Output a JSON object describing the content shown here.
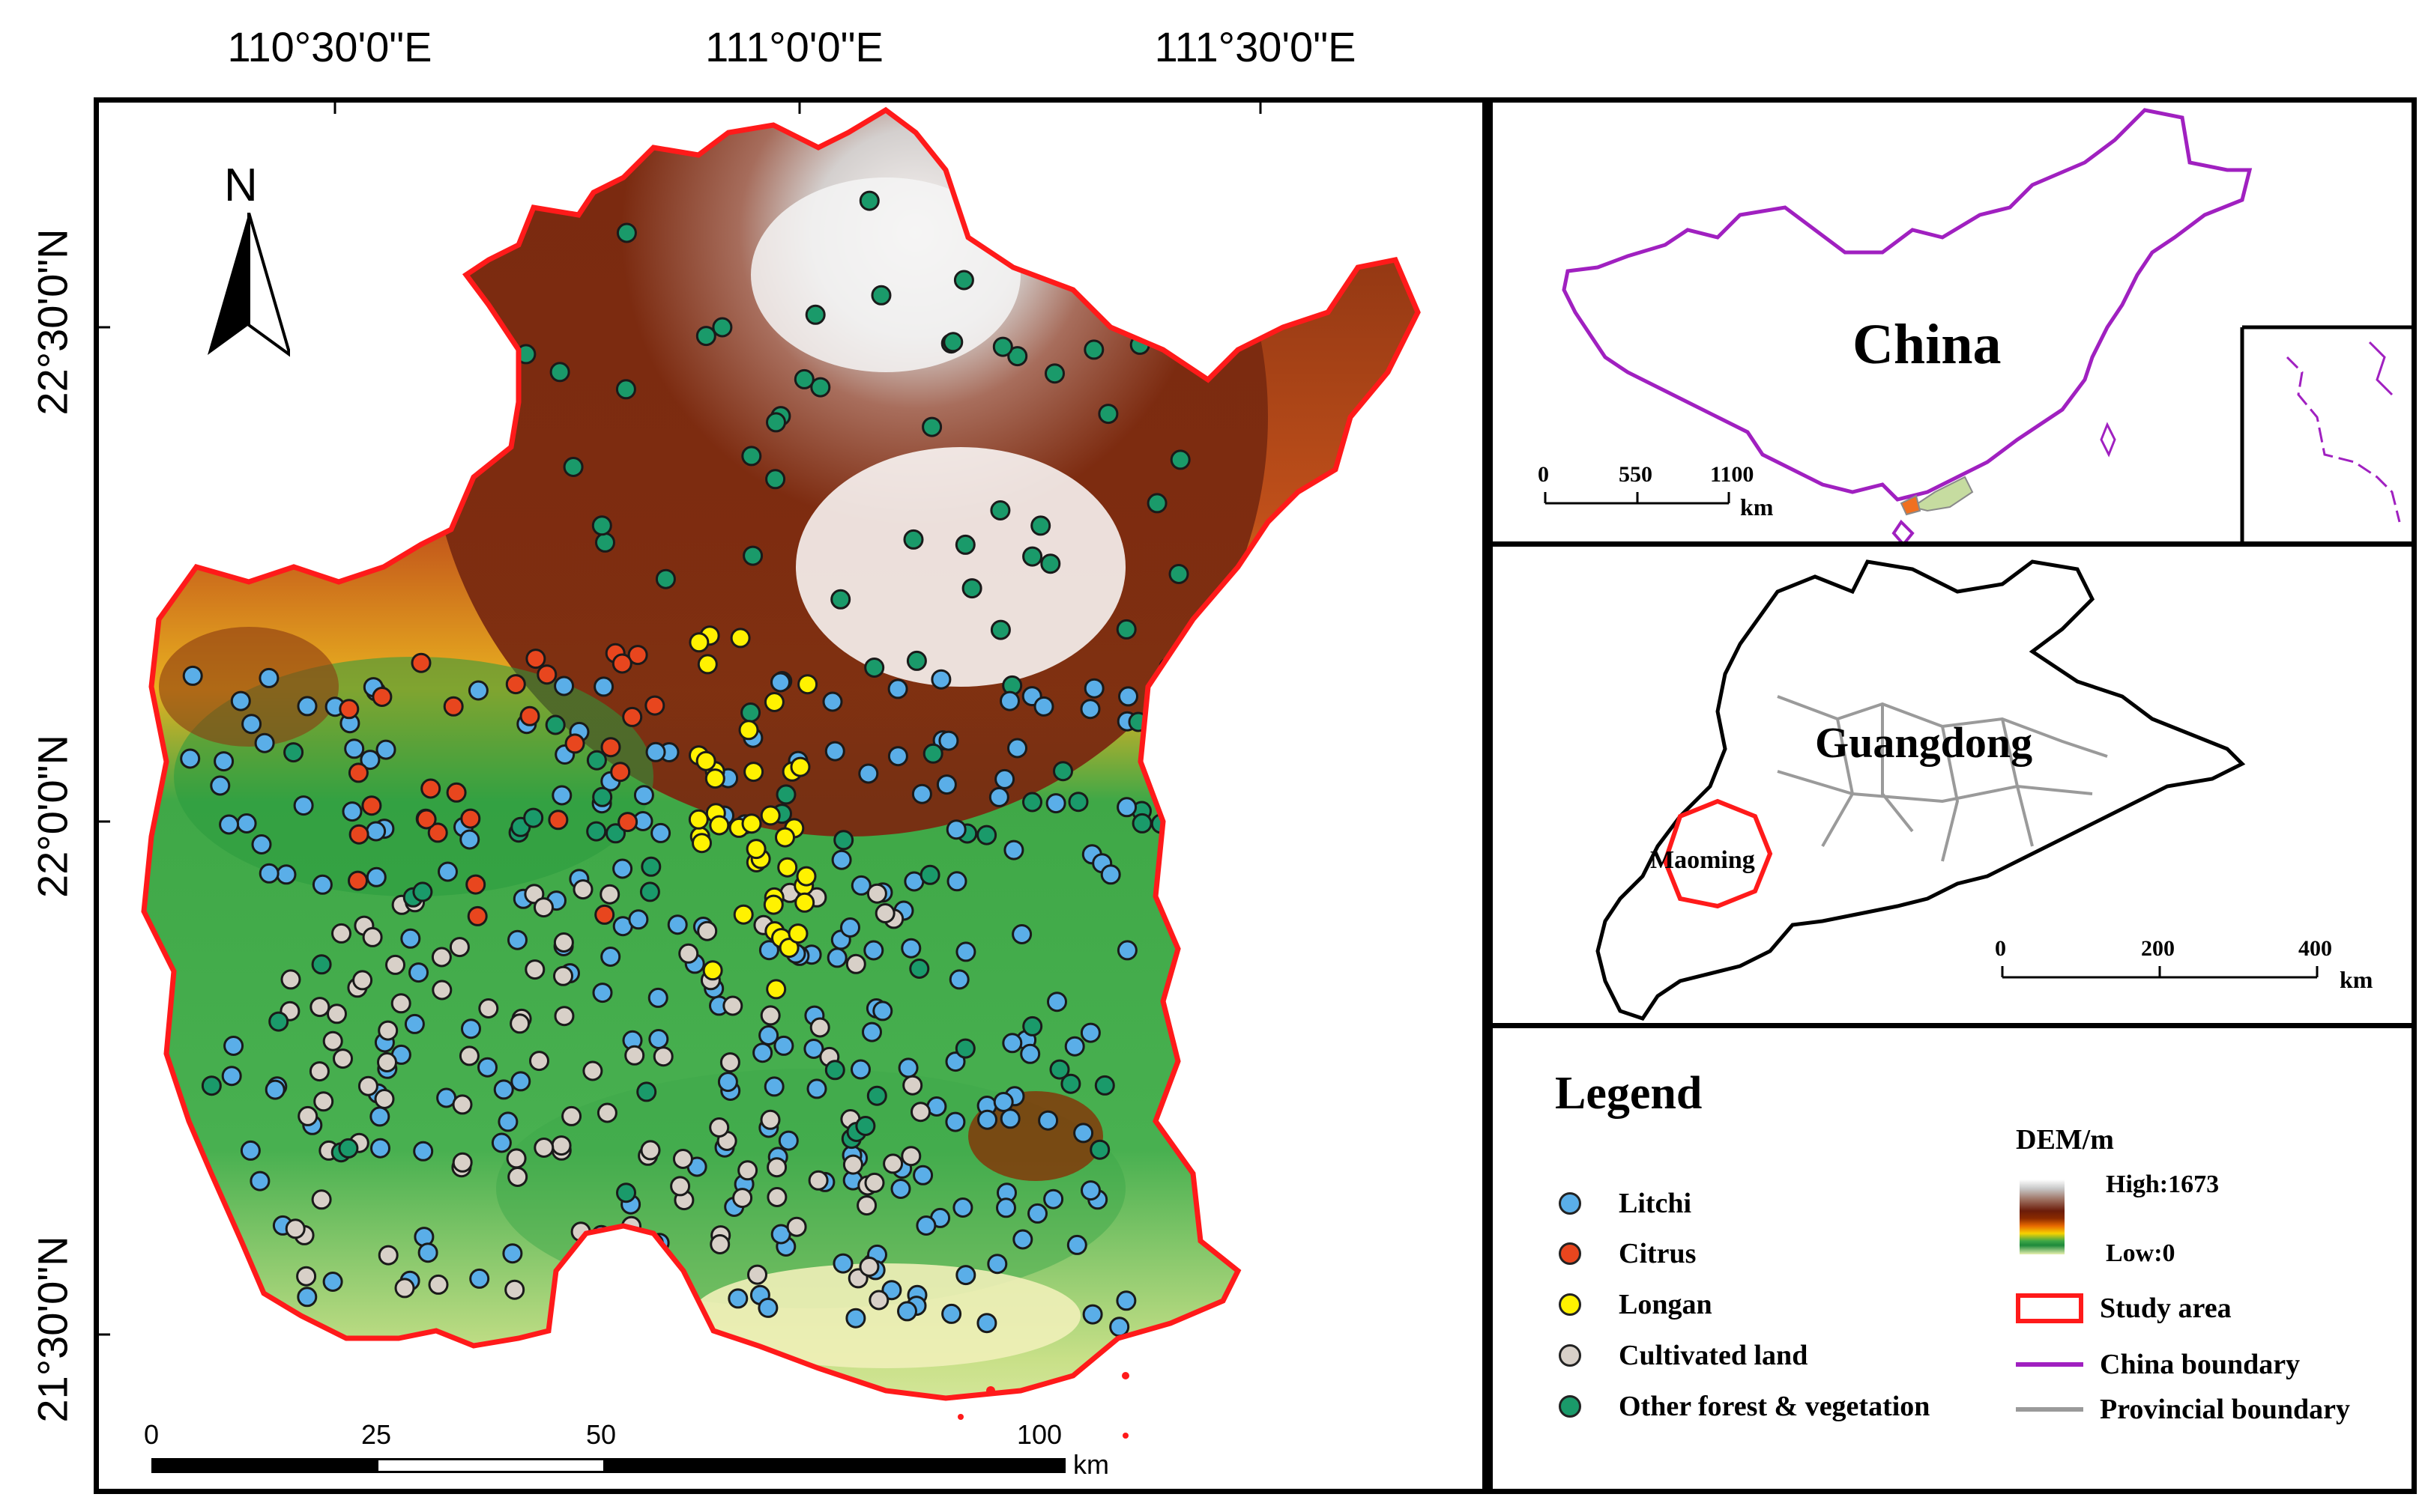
{
  "top_coords": [
    "110°30'0\"E",
    "111°0'0\"E",
    "111°30'0\"E"
  ],
  "left_coords": [
    "22°30'0\"N",
    "22°0'0\"N",
    "21°30'0\"N"
  ],
  "main_scale": {
    "ticks": [
      "0",
      "25",
      "50",
      "100"
    ],
    "unit": "km"
  },
  "north_label": "N",
  "china_panel": {
    "title": "China",
    "scale_ticks": [
      "0",
      "550",
      "1100"
    ],
    "unit": "km"
  },
  "guangdong_panel": {
    "title": "Guangdong",
    "city": "Maoming",
    "scale_ticks": [
      "0",
      "200",
      "400"
    ],
    "unit": "km"
  },
  "legend": {
    "title": "Legend",
    "items": [
      {
        "label": "Litchi",
        "color": "#5aaee8"
      },
      {
        "label": "Citrus",
        "color": "#e8461e"
      },
      {
        "label": "Longan",
        "color": "#fff200"
      },
      {
        "label": "Cultivated land",
        "color": "#d8d0c8"
      },
      {
        "label": "Other forest & vegetation",
        "color": "#1a9a6a"
      }
    ],
    "dem_title": "DEM/m",
    "dem_high": "High:1673",
    "dem_low": "Low:0",
    "study_area": "Study area",
    "china_boundary": "China boundary",
    "provincial_boundary": "Provincial boundary"
  },
  "colors": {
    "study_boundary": "#ff1a1a",
    "china_boundary": "#a020c0",
    "provincial_boundary": "#9a9a9a"
  }
}
